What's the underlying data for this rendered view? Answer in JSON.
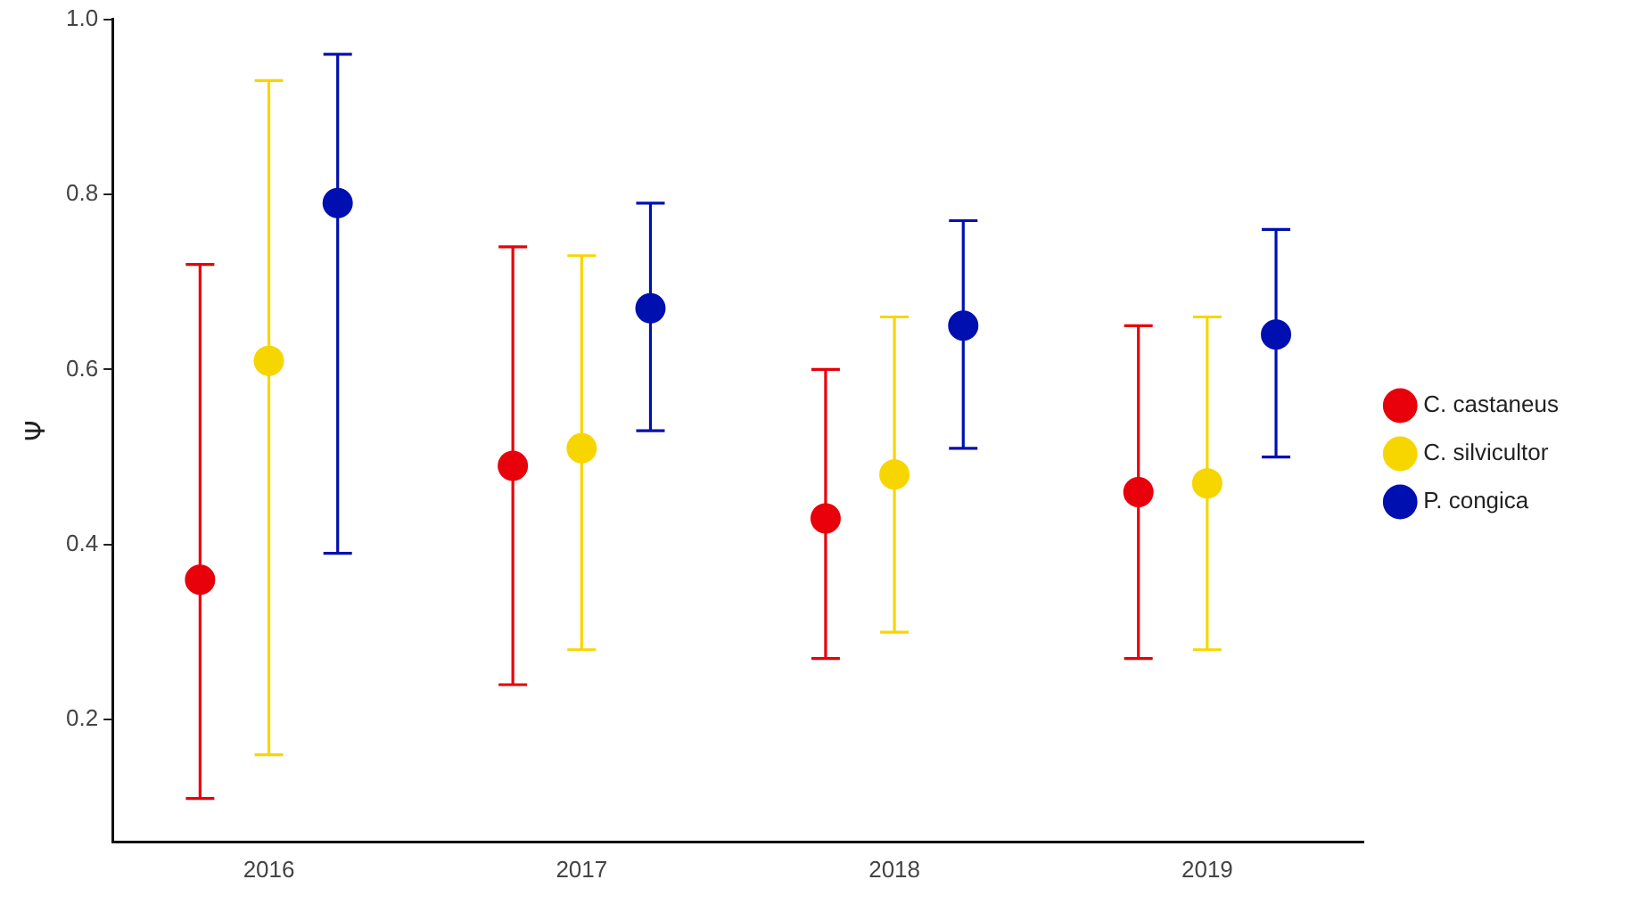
{
  "chart_data": {
    "type": "scatter",
    "ylabel": "Ψ",
    "categories": [
      "2016",
      "2017",
      "2018",
      "2019"
    ],
    "ylim": [
      0.06,
      1.0
    ],
    "yticks": [
      0.2,
      0.4,
      0.6,
      0.8,
      {
        "value": 1.0,
        "label": "1.0"
      }
    ],
    "grid": false,
    "legend": "right",
    "marker": "circle",
    "series": [
      {
        "name": "C. castaneus",
        "color": "#e8000b",
        "values": [
          0.36,
          0.49,
          0.43,
          0.46
        ],
        "errors": [
          [
            0.11,
            0.72
          ],
          [
            0.24,
            0.74
          ],
          [
            0.27,
            0.6
          ],
          [
            0.27,
            0.65
          ]
        ]
      },
      {
        "name": "C. silvicultor",
        "color": "#f7d600",
        "values": [
          0.61,
          0.51,
          0.48,
          0.47
        ],
        "errors": [
          [
            0.16,
            0.93
          ],
          [
            0.28,
            0.73
          ],
          [
            0.3,
            0.66
          ],
          [
            0.28,
            0.66
          ]
        ]
      },
      {
        "name": "P. congica",
        "color": "#0010b0",
        "values": [
          0.79,
          0.67,
          0.65,
          0.64
        ],
        "errors": [
          [
            0.39,
            0.96
          ],
          [
            0.53,
            0.79
          ],
          [
            0.51,
            0.77
          ],
          [
            0.5,
            0.76
          ]
        ]
      }
    ]
  }
}
